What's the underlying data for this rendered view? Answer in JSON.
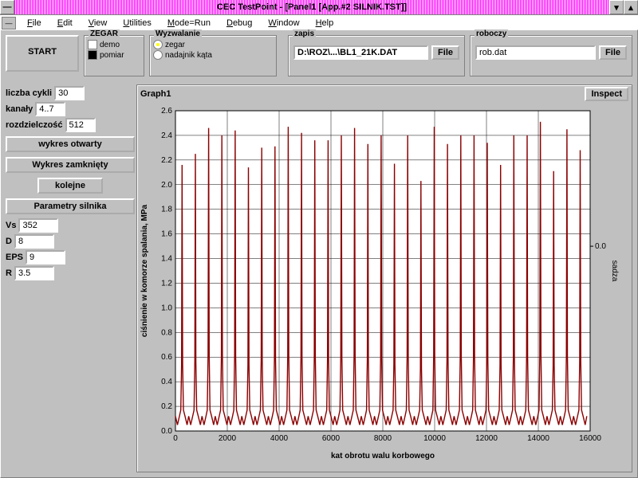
{
  "window": {
    "title": "CEC TestPoint - [Panel1 [App.#2 SILNIK.TST]]"
  },
  "menu": [
    "File",
    "Edit",
    "View",
    "Utilities",
    "Mode=Run",
    "Debug",
    "Window",
    "Help"
  ],
  "start_btn": "START",
  "zegar": {
    "title": "ZEGAR",
    "opts": [
      "demo",
      "pomiar"
    ]
  },
  "wyzw": {
    "title": "Wyzwalanie",
    "opts": [
      "zegar",
      "nadajnik kąta"
    ]
  },
  "zapis": {
    "title": "zapis",
    "path": "D:\\ROZ\\...\\BL1_21K.DAT",
    "btn": "File"
  },
  "roboczy": {
    "title": "roboczy",
    "path": "rob.dat",
    "btn": "File"
  },
  "params": {
    "liczba_cykli": {
      "label": "liczba cykli",
      "val": "30"
    },
    "kanaly": {
      "label": "kanały",
      "val": "4..7"
    },
    "rozdz": {
      "label": "rozdzielczość",
      "val": "512"
    },
    "vs": {
      "label": "Vs",
      "val": "352"
    },
    "d": {
      "label": "D",
      "val": "8"
    },
    "eps": {
      "label": "EPS",
      "val": "9"
    },
    "r": {
      "label": "R",
      "val": "3.5"
    }
  },
  "buttons": {
    "otwarty": "wykres otwarty",
    "zamkniety": "Wykres zamknięty",
    "kolejne": "kolejne",
    "param": "Parametry silnika"
  },
  "graph": {
    "title": "Graph1",
    "inspect": "Inspect",
    "ylabel": "ciśnienie w komorze spalania, MPa",
    "xlabel": "kat obrotu walu korbowego",
    "y2label": "sadza",
    "xlim": [
      0,
      16000
    ],
    "ylim": [
      0,
      2.6
    ],
    "xtick": 2000,
    "ytick": 0.2,
    "y2_tick": "0.0",
    "line_color": "#8b0000",
    "grid_color": "#000000",
    "bg": "#ffffff",
    "peaks": [
      2.16,
      2.25,
      2.46,
      2.4,
      2.44,
      2.14,
      2.3,
      2.31,
      2.47,
      2.42,
      2.36,
      2.36,
      2.4,
      2.46,
      2.33,
      2.4,
      2.17,
      2.4,
      2.03,
      2.47,
      2.33,
      2.4,
      2.4,
      2.34,
      2.16,
      2.4,
      2.4,
      2.51,
      2.11,
      2.45,
      2.28
    ],
    "base": 0.12,
    "dip": 0.05,
    "period": 512
  }
}
